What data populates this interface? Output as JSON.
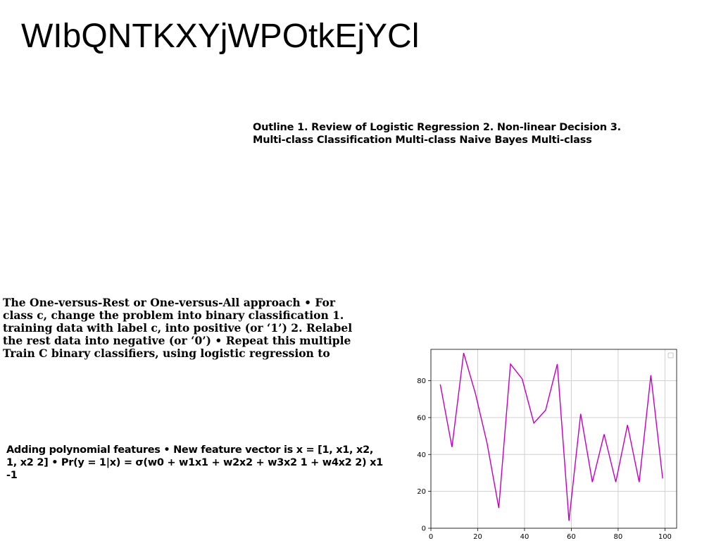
{
  "slide": {
    "title": "WIbQNTKXYjWPOtkEjYCl",
    "outline_text": "Outline 1. Review of Logistic Regression 2. Non-linear Decision 3. Multi-class Classification Multi-class Naive Bayes Multi-class",
    "ovr_text": "The One-versus-Rest or One-versus-All approach • For class c, change the problem into binary classification 1. training data with label c, into positive (or ‘1’) 2. Relabel the rest data into negative (or ‘0’) • Repeat this multiple Train C binary classifiers, using logistic regression to",
    "poly_text": "Adding polynomial features • New feature vector is x = [1, x1, x2, 1, x2 2] • Pr(y = 1|x) = σ(w0 + w1x1 + w2x2 + w3x2 1 + w4x2 2) x1 -1"
  },
  "chart_data": {
    "type": "line",
    "title": "",
    "xlabel": "",
    "ylabel": "",
    "xlim": [
      0,
      105
    ],
    "ylim": [
      0,
      97
    ],
    "xticks": [
      0,
      20,
      40,
      60,
      80,
      100
    ],
    "yticks": [
      0,
      20,
      40,
      60,
      80
    ],
    "grid": true,
    "legend": "top-right (empty)",
    "series": [
      {
        "color": "#c000c0",
        "x": [
          4,
          9,
          14,
          19,
          24,
          29,
          34,
          39,
          44,
          49,
          54,
          59,
          64,
          69,
          74,
          79,
          84,
          89,
          94,
          99
        ],
        "y": [
          78,
          44,
          95,
          73,
          46,
          11,
          89,
          81,
          57,
          64,
          89,
          4,
          62,
          25,
          51,
          25,
          56,
          25,
          83,
          27
        ]
      }
    ]
  }
}
